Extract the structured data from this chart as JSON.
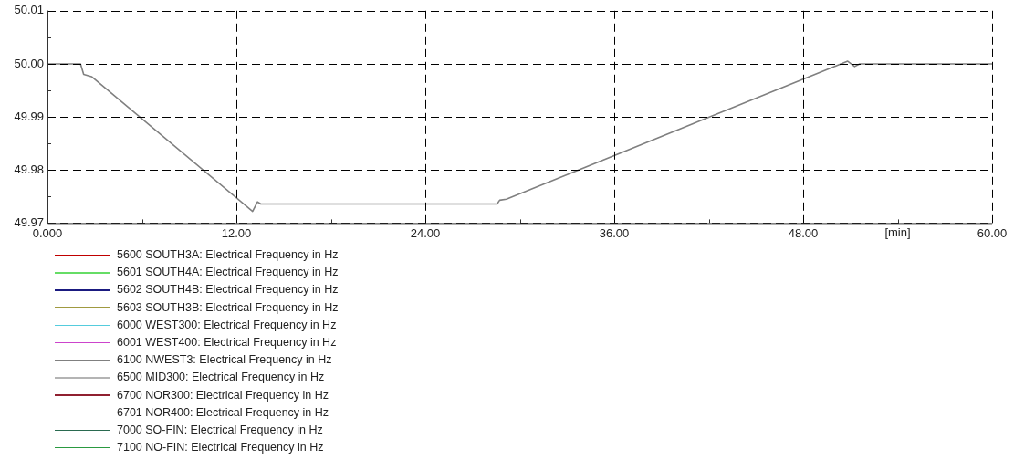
{
  "chart_data": {
    "type": "line",
    "xlabel": "[min]",
    "x": [
      0,
      2.1,
      2.3,
      2.8,
      13.03,
      13.34,
      13.55,
      28.56,
      28.72,
      29.15,
      50.83,
      51.27,
      51.59,
      60
    ],
    "xlim": [
      0,
      60
    ],
    "xticks": [
      {
        "value": 0,
        "label": "0.000"
      },
      {
        "value": 6,
        "label": null
      },
      {
        "value": 12,
        "label": "12.00"
      },
      {
        "value": 18,
        "label": null
      },
      {
        "value": 24,
        "label": "24.00"
      },
      {
        "value": 30,
        "label": null
      },
      {
        "value": 36,
        "label": "36.00"
      },
      {
        "value": 42,
        "label": null
      },
      {
        "value": 48,
        "label": "48.00"
      },
      {
        "value": 54,
        "label": null
      },
      {
        "value": 60,
        "label": "60.00"
      }
    ],
    "ylim": [
      49.97,
      50.01
    ],
    "yticks": [
      49.97,
      {
        "value": 49.975,
        "label": null
      },
      49.98,
      {
        "value": 49.985,
        "label": null
      },
      49.99,
      {
        "value": 49.995,
        "label": null
      },
      {
        "value": 50,
        "label": "50.00"
      },
      {
        "value": 50.005,
        "label": null
      },
      50.01
    ],
    "grid": true,
    "legend": "bottom",
    "marker": "none",
    "line_style": "solid",
    "series": [
      {
        "name": "5600 SOUTH3A: Electrical Frequency in Hz",
        "color": "#c00000",
        "values": [
          null,
          null,
          null,
          null,
          null,
          null,
          null,
          null,
          null,
          null,
          null,
          null,
          null,
          null
        ]
      },
      {
        "name": "5601 SOUTH4A: Electrical Frequency in Hz",
        "color": "#66dd66",
        "values": [
          null,
          null,
          null,
          null,
          null,
          null,
          null,
          null,
          null,
          null,
          null,
          null,
          null,
          null
        ]
      },
      {
        "name": "5602 SOUTH4B: Electrical Frequency in Hz",
        "color": "#1a1a80",
        "values": [
          null,
          null,
          null,
          null,
          null,
          null,
          null,
          null,
          null,
          null,
          null,
          null,
          null,
          null
        ]
      },
      {
        "name": "5603 SOUTH3B: Electrical Frequency in Hz",
        "color": "#a09a40",
        "values": [
          null,
          null,
          null,
          null,
          null,
          null,
          null,
          null,
          null,
          null,
          null,
          null,
          null,
          null
        ]
      },
      {
        "name": "6000 WEST300: Electrical Frequency in Hz",
        "color": "#55ccdd",
        "values": [
          null,
          null,
          null,
          null,
          null,
          null,
          null,
          null,
          null,
          null,
          null,
          null,
          null,
          null
        ]
      },
      {
        "name": "6001 WEST400: Electrical Frequency in Hz",
        "color": "#cc44cc",
        "values": [
          null,
          null,
          null,
          null,
          null,
          null,
          null,
          null,
          null,
          null,
          null,
          null,
          null,
          null
        ]
      },
      {
        "name": "6100 NWEST3: Electrical Frequency in Hz",
        "color": "#808080",
        "values": [
          50,
          50,
          49.998,
          49.9976,
          49.9722,
          49.974,
          49.9736,
          49.9736,
          49.9743,
          49.9745,
          50.0005,
          49.9995,
          50,
          50
        ]
      },
      {
        "name": "6500 MID300: Electrical Frequency in Hz",
        "color": "#b4b4b4",
        "values": [
          null,
          null,
          null,
          null,
          null,
          null,
          null,
          null,
          null,
          null,
          null,
          null,
          null,
          null
        ]
      },
      {
        "name": "6700 NOR300: Electrical Frequency in Hz",
        "color": "#902030",
        "values": [
          null,
          null,
          null,
          null,
          null,
          null,
          null,
          null,
          null,
          null,
          null,
          null,
          null,
          null
        ]
      },
      {
        "name": "6701 NOR400: Electrical Frequency in Hz",
        "color": "#a03030",
        "values": [
          null,
          null,
          null,
          null,
          null,
          null,
          null,
          null,
          null,
          null,
          null,
          null,
          null,
          null
        ]
      },
      {
        "name": "7000 SO-FIN: Electrical Frequency in Hz",
        "color": "#2a6a50",
        "values": [
          null,
          null,
          null,
          null,
          null,
          null,
          null,
          null,
          null,
          null,
          null,
          null,
          null,
          null
        ]
      },
      {
        "name": "7100 NO-FIN: Electrical Frequency in Hz",
        "color": "#2a9a40",
        "values": [
          null,
          null,
          null,
          null,
          null,
          null,
          null,
          null,
          null,
          null,
          null,
          null,
          null,
          null
        ]
      }
    ]
  }
}
